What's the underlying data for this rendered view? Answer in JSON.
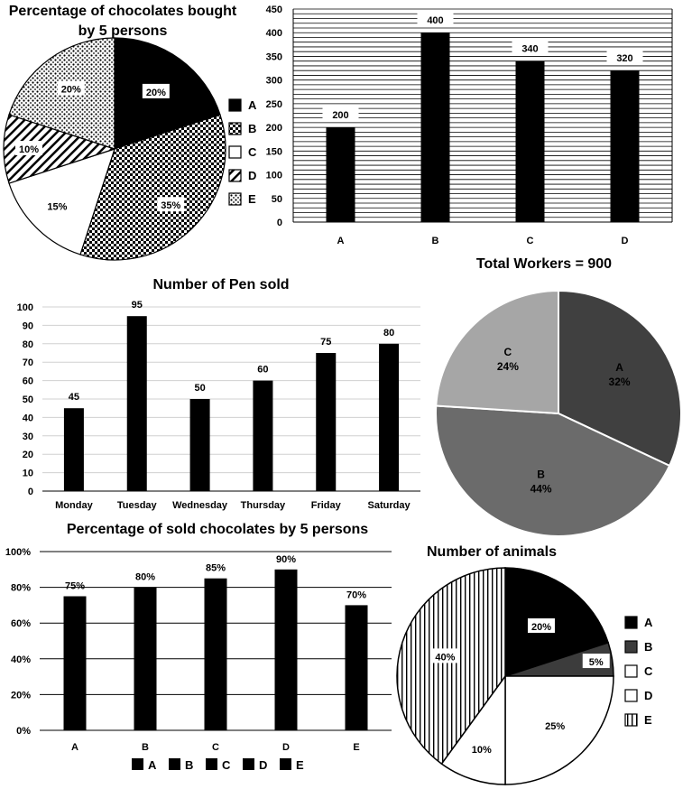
{
  "chart_data": [
    {
      "id": "c1",
      "type": "pie",
      "title_lines": [
        "Percentage of chocolates bought",
        "by 5 persons"
      ],
      "slices": [
        {
          "label": "A",
          "value": 20,
          "value_label": "20%",
          "pattern": "solid-black"
        },
        {
          "label": "B",
          "value": 35,
          "value_label": "35%",
          "pattern": "checker"
        },
        {
          "label": "C",
          "value": 15,
          "value_label": "15%",
          "pattern": "white"
        },
        {
          "label": "D",
          "value": 10,
          "value_label": "10%",
          "pattern": "diagonal"
        },
        {
          "label": "E",
          "value": 20,
          "value_label": "20%",
          "pattern": "dots"
        }
      ],
      "legend": {
        "position": "right",
        "labels": [
          "A",
          "B",
          "C",
          "D",
          "E"
        ]
      }
    },
    {
      "id": "c2",
      "type": "bar",
      "categories": [
        "A",
        "B",
        "C",
        "D"
      ],
      "values": [
        200,
        400,
        340,
        320
      ],
      "value_labels": [
        "200",
        "400",
        "340",
        "320"
      ],
      "ylim": [
        0,
        450
      ],
      "yticks": [
        "0",
        "50",
        "100",
        "150",
        "200",
        "250",
        "300",
        "350",
        "400",
        "450"
      ],
      "grid": "dense horizontal lines"
    },
    {
      "id": "c3",
      "type": "bar",
      "title": "Number of Pen sold",
      "categories": [
        "Monday",
        "Tuesday",
        "Wednesday",
        "Thursday",
        "Friday",
        "Saturday"
      ],
      "values": [
        45,
        95,
        50,
        60,
        75,
        80
      ],
      "value_labels": [
        "45",
        "95",
        "50",
        "60",
        "75",
        "80"
      ],
      "ylim": [
        0,
        100
      ],
      "yticks": [
        "0",
        "10",
        "20",
        "30",
        "40",
        "50",
        "60",
        "70",
        "80",
        "90",
        "100"
      ],
      "grid": true
    },
    {
      "id": "c4",
      "type": "pie",
      "title": "Total Workers = 900",
      "slices": [
        {
          "label": "A",
          "value": 32,
          "value_label": "32%",
          "color": "#404040"
        },
        {
          "label": "B",
          "value": 44,
          "value_label": "44%",
          "color": "#6b6b6b"
        },
        {
          "label": "C",
          "value": 24,
          "value_label": "24%",
          "color": "#a6a6a6"
        }
      ]
    },
    {
      "id": "c5",
      "type": "bar",
      "title": "Percentage of sold chocolates by 5 persons",
      "categories": [
        "A",
        "B",
        "C",
        "D",
        "E"
      ],
      "values": [
        75,
        80,
        85,
        90,
        70
      ],
      "value_labels": [
        "75%",
        "80%",
        "85%",
        "90%",
        "70%"
      ],
      "ylim": [
        0,
        100
      ],
      "yticks": [
        "0%",
        "20%",
        "40%",
        "60%",
        "80%",
        "100%"
      ],
      "grid": true,
      "legend": {
        "position": "bottom",
        "labels": [
          "A",
          "B",
          "C",
          "D",
          "E"
        ]
      }
    },
    {
      "id": "c6",
      "type": "pie",
      "title": "Number of animals",
      "slices": [
        {
          "label": "A",
          "value": 20,
          "value_label": "20%",
          "pattern": "solid-black"
        },
        {
          "label": "B",
          "value": 5,
          "value_label": "5%",
          "pattern": "dark-gray"
        },
        {
          "label": "C",
          "value": 25,
          "value_label": "25%",
          "pattern": "white"
        },
        {
          "label": "D",
          "value": 10,
          "value_label": "10%",
          "pattern": "white"
        },
        {
          "label": "E",
          "value": 40,
          "value_label": "40%",
          "pattern": "vertical-stripes"
        }
      ],
      "legend": {
        "position": "right",
        "labels": [
          "A",
          "B",
          "C",
          "D",
          "E"
        ]
      }
    }
  ]
}
